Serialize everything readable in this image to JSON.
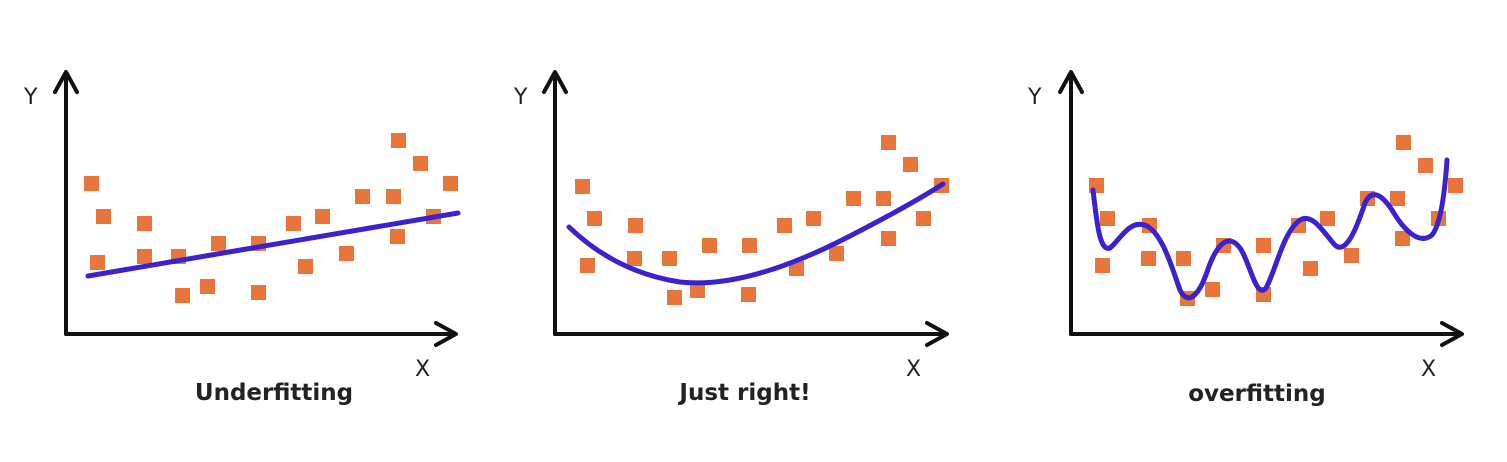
{
  "colors": {
    "point": "#e8763a",
    "curve": "#3a22d0",
    "axis": "#111111",
    "background": "#ffffff"
  },
  "panels": [
    {
      "title": "Underfitting",
      "x_label": "X",
      "y_label": "Y",
      "fit": "linear"
    },
    {
      "title": "Just right!",
      "x_label": "X",
      "y_label": "Y",
      "fit": "quadratic"
    },
    {
      "title": "overfitting",
      "x_label": "X",
      "y_label": "Y",
      "fit": "wiggly"
    }
  ]
}
